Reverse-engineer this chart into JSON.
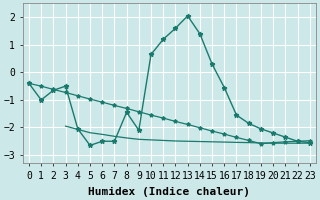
{
  "xlabel": "Humidex (Indice chaleur)",
  "bg_color": "#cce8e8",
  "grid_color": "#ffffff",
  "line_color": "#1a7a6e",
  "xlim": [
    -0.5,
    23.5
  ],
  "ylim": [
    -3.3,
    2.5
  ],
  "yticks": [
    -3,
    -2,
    -1,
    0,
    1,
    2
  ],
  "xticks": [
    0,
    1,
    2,
    3,
    4,
    5,
    6,
    7,
    8,
    9,
    10,
    11,
    12,
    13,
    14,
    15,
    16,
    17,
    18,
    19,
    20,
    21,
    22,
    23
  ],
  "curve1_x": [
    0,
    1,
    2,
    3,
    4,
    5,
    6,
    7,
    8,
    9,
    10,
    11,
    12,
    13,
    14,
    15,
    16,
    17,
    18,
    19,
    20,
    21,
    22,
    23
  ],
  "curve1_y": [
    -0.4,
    -1.0,
    -0.65,
    -0.5,
    -2.05,
    -2.65,
    -2.5,
    -2.5,
    -1.45,
    -2.1,
    0.65,
    1.2,
    1.6,
    2.05,
    1.4,
    0.3,
    -0.55,
    -1.55,
    -1.85,
    -2.05,
    -2.2,
    -2.35,
    -2.5,
    -2.55
  ],
  "curve2_x": [
    0,
    1,
    2,
    3,
    4,
    5,
    6,
    7,
    8,
    9,
    10,
    11,
    12,
    13,
    14,
    15,
    16,
    17,
    18,
    19,
    20,
    21,
    22,
    23
  ],
  "curve2_y": [
    -0.4,
    -0.5,
    -0.62,
    -0.73,
    -0.85,
    -0.97,
    -1.08,
    -1.2,
    -1.31,
    -1.43,
    -1.55,
    -1.66,
    -1.78,
    -1.89,
    -2.01,
    -2.13,
    -2.24,
    -2.36,
    -2.47,
    -2.59,
    -2.55,
    -2.52,
    -2.5,
    -2.48
  ],
  "curve3_x": [
    3,
    4,
    5,
    6,
    7,
    8,
    9,
    10,
    11,
    12,
    13,
    14,
    15,
    16,
    17,
    18,
    19,
    20,
    21,
    22,
    23
  ],
  "curve3_y": [
    -1.95,
    -2.07,
    -2.19,
    -2.25,
    -2.32,
    -2.38,
    -2.43,
    -2.45,
    -2.47,
    -2.49,
    -2.5,
    -2.51,
    -2.52,
    -2.53,
    -2.54,
    -2.55,
    -2.56,
    -2.57,
    -2.57,
    -2.57,
    -2.57
  ],
  "tick_fontsize": 7,
  "label_fontsize": 8
}
